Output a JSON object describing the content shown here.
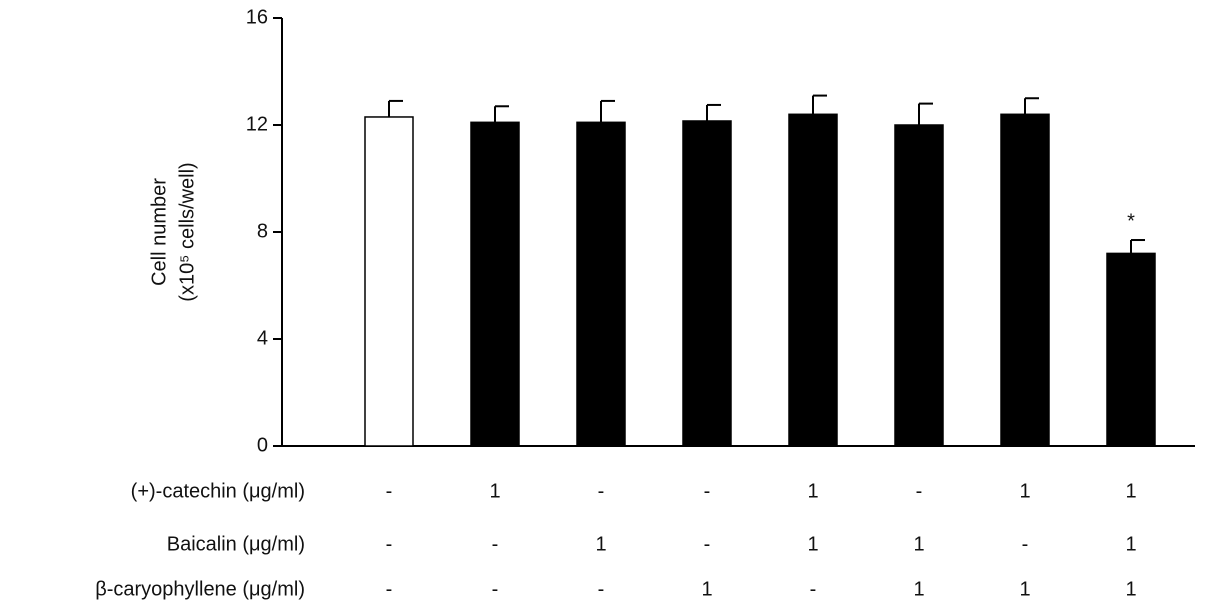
{
  "chart_data": {
    "type": "bar",
    "y_label_lines": [
      "Cell number",
      "(x10⁵ cells/well)"
    ],
    "values": [
      12.3,
      12.1,
      12.1,
      12.15,
      12.4,
      12.0,
      12.4,
      7.2
    ],
    "errors": [
      0.6,
      0.6,
      0.8,
      0.6,
      0.7,
      0.8,
      0.6,
      0.5
    ],
    "colors": [
      "#ffffff",
      "#000000",
      "#000000",
      "#000000",
      "#000000",
      "#000000",
      "#000000",
      "#000000"
    ],
    "significance": [
      null,
      null,
      null,
      null,
      null,
      null,
      null,
      "*"
    ],
    "ylim": [
      0,
      16
    ],
    "yticks": [
      0,
      4,
      8,
      12,
      16
    ],
    "treatments": [
      {
        "label": "(+)-catechin (μg/ml)",
        "values": [
          "-",
          "1",
          "-",
          "-",
          "1",
          "-",
          "1",
          "1"
        ]
      },
      {
        "label": "Baicalin (μg/ml)",
        "values": [
          "-",
          "-",
          "1",
          "-",
          "1",
          "1",
          "-",
          "1"
        ]
      },
      {
        "label": "β-caryophyllene (μg/ml)",
        "values": [
          "-",
          "-",
          "-",
          "1",
          "-",
          "1",
          "1",
          "1"
        ]
      }
    ]
  }
}
